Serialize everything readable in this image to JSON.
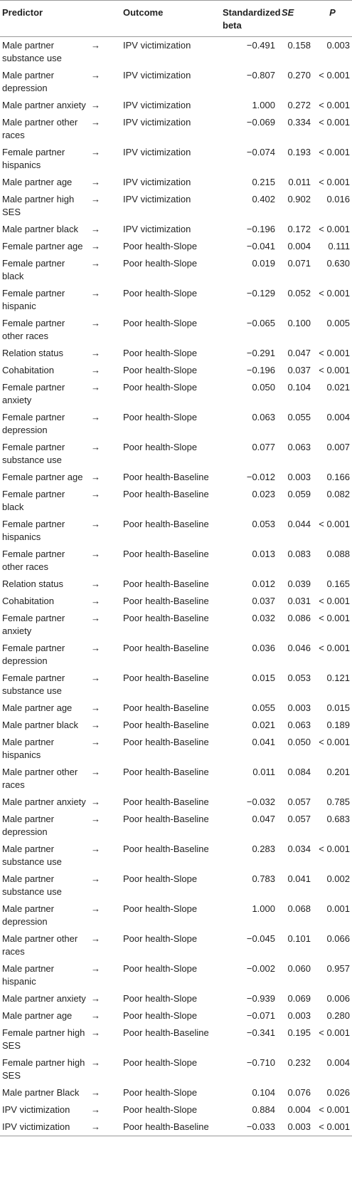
{
  "table": {
    "header": [
      "Predictor",
      "Outcome",
      "Standardized beta",
      "SE",
      "P"
    ],
    "rows": [
      [
        "Male partner substance use",
        "→",
        "IPV victimization",
        "−0.491",
        "0.158",
        "0.003"
      ],
      [
        "Male partner depression",
        "→",
        "IPV victimization",
        "−0.807",
        "0.270",
        "< 0.001"
      ],
      [
        "Male partner anxiety",
        "→",
        "IPV victimization",
        "1.000",
        "0.272",
        "< 0.001"
      ],
      [
        "Male partner other races",
        "→",
        "IPV victimization",
        "−0.069",
        "0.334",
        "< 0.001"
      ],
      [
        "Female partner hispanics",
        "→",
        "IPV victimization",
        "−0.074",
        "0.193",
        "< 0.001"
      ],
      [
        "Male partner age",
        "→",
        "IPV victimization",
        "0.215",
        "0.011",
        "< 0.001"
      ],
      [
        "Male partner high SES",
        "→",
        "IPV victimization",
        "0.402",
        "0.902",
        "0.016"
      ],
      [
        "Male partner black",
        "→",
        "IPV victimization",
        "−0.196",
        "0.172",
        "< 0.001"
      ],
      [
        "Female partner age",
        "→",
        "Poor health-Slope",
        "−0.041",
        "0.004",
        "0.111"
      ],
      [
        "Female partner black",
        "→",
        "Poor health-Slope",
        "0.019",
        "0.071",
        "0.630"
      ],
      [
        "Female partner hispanic",
        "→",
        "Poor health-Slope",
        "−0.129",
        "0.052",
        "< 0.001"
      ],
      [
        "Female partner other races",
        "→",
        "Poor health-Slope",
        "−0.065",
        "0.100",
        "0.005"
      ],
      [
        "Relation status",
        "→",
        "Poor health-Slope",
        "−0.291",
        "0.047",
        "< 0.001"
      ],
      [
        "Cohabitation",
        "→",
        "Poor health-Slope",
        "−0.196",
        "0.037",
        "< 0.001"
      ],
      [
        "Female partner anxiety",
        "→",
        "Poor health-Slope",
        "0.050",
        "0.104",
        "0.021"
      ],
      [
        "Female partner depression",
        "→",
        "Poor health-Slope",
        "0.063",
        "0.055",
        "0.004"
      ],
      [
        "Female partner substance use",
        "→",
        "Poor health-Slope",
        "0.077",
        "0.063",
        "0.007"
      ],
      [
        "Female partner age",
        "→",
        "Poor health-Baseline",
        "−0.012",
        "0.003",
        "0.166"
      ],
      [
        "Female partner black",
        "→",
        "Poor health-Baseline",
        "0.023",
        "0.059",
        "0.082"
      ],
      [
        "Female partner hispanics",
        "→",
        "Poor health-Baseline",
        "0.053",
        "0.044",
        "< 0.001"
      ],
      [
        "Female partner other races",
        "→",
        "Poor health-Baseline",
        "0.013",
        "0.083",
        "0.088"
      ],
      [
        "Relation status",
        "→",
        "Poor health-Baseline",
        "0.012",
        "0.039",
        "0.165"
      ],
      [
        "Cohabitation",
        "→",
        "Poor health-Baseline",
        "0.037",
        "0.031",
        "< 0.001"
      ],
      [
        "Female partner anxiety",
        "→",
        "Poor health-Baseline",
        "0.032",
        "0.086",
        "< 0.001"
      ],
      [
        "Female partner depression",
        "→",
        "Poor health-Baseline",
        "0.036",
        "0.046",
        "< 0.001"
      ],
      [
        "Female partner substance use",
        "→",
        "Poor health-Baseline",
        "0.015",
        "0.053",
        "0.121"
      ],
      [
        "Male partner age",
        "→",
        "Poor health-Baseline",
        "0.055",
        "0.003",
        "0.015"
      ],
      [
        "Male partner black",
        "→",
        "Poor health-Baseline",
        "0.021",
        "0.063",
        "0.189"
      ],
      [
        "Male partner hispanics",
        "→",
        "Poor health-Baseline",
        "0.041",
        "0.050",
        "< 0.001"
      ],
      [
        "Male partner other races",
        "→",
        "Poor health-Baseline",
        "0.011",
        "0.084",
        "0.201"
      ],
      [
        "Male partner anxiety",
        "→",
        "Poor health-Baseline",
        "−0.032",
        "0.057",
        "0.785"
      ],
      [
        "Male partner depression",
        "→",
        "Poor health-Baseline",
        "0.047",
        "0.057",
        "0.683"
      ],
      [
        "Male partner substance use",
        "→",
        "Poor health-Baseline",
        "0.283",
        "0.034",
        "< 0.001"
      ],
      [
        "Male partner substance use",
        "→",
        "Poor health-Slope",
        "0.783",
        "0.041",
        "0.002"
      ],
      [
        "Male partner depression",
        "→",
        "Poor health-Slope",
        "1.000",
        "0.068",
        "0.001"
      ],
      [
        "Male partner other races",
        "→",
        "Poor health-Slope",
        "−0.045",
        "0.101",
        "0.066"
      ],
      [
        "Male partner hispanic",
        "→",
        "Poor health-Slope",
        "−0.002",
        "0.060",
        "0.957"
      ],
      [
        "Male partner anxiety",
        "→",
        "Poor health-Slope",
        "−0.939",
        "0.069",
        "0.006"
      ],
      [
        "Male partner age",
        "→",
        "Poor health-Slope",
        "−0.071",
        "0.003",
        "0.280"
      ],
      [
        "Female partner high SES",
        "→",
        "Poor health-Baseline",
        "−0.341",
        "0.195",
        "< 0.001"
      ],
      [
        "Female partner high SES",
        "→",
        "Poor health-Slope",
        "−0.710",
        "0.232",
        "0.004"
      ],
      [
        "Male partner Black",
        "→",
        "Poor health-Slope",
        "0.104",
        "0.076",
        "0.026"
      ],
      [
        "IPV victimization",
        "→",
        "Poor health-Slope",
        "0.884",
        "0.004",
        "< 0.001"
      ],
      [
        "IPV victimization",
        "→",
        "Poor health-Baseline",
        "−0.033",
        "0.003",
        "< 0.001"
      ]
    ]
  }
}
